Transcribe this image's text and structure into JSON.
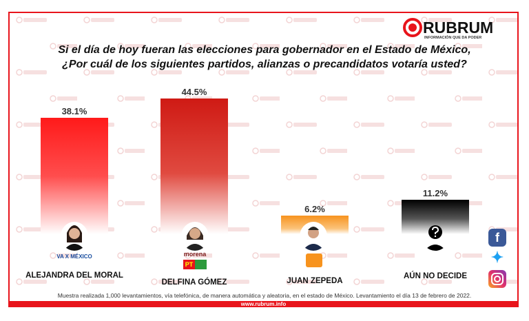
{
  "chart_data": {
    "type": "bar",
    "title": "Si el día de hoy fueran las elecciones para gobernador en el Estado de México, ¿Por cuál de los siguientes partidos, alianzas o precandidatos votaría usted?",
    "categories": [
      "ALEJANDRA DEL MORAL",
      "DELFINA GÓMEZ",
      "JUAN ZEPEDA",
      "AÚN NO DECIDE"
    ],
    "values": [
      38.1,
      44.5,
      6.2,
      11.2
    ],
    "labels": [
      "38.1%",
      "44.5%",
      "6.2%",
      "11.2%"
    ],
    "colors": [
      "#ff1a1a",
      "#d01a14",
      "#f7931e",
      "#000000"
    ],
    "ylim": [
      0,
      50
    ],
    "grid": false
  },
  "title_line1": "Si el día de hoy fueran las elecciones para gobernador en el Estado de México,",
  "title_line2": "¿Por cuál de los siguientes partidos, alianzas o precandidatos votaría usted?",
  "logo": {
    "name": "RUBRUM",
    "tagline": "INFORMACIÓN QUE DA PODER"
  },
  "watermark": "RUBRUM",
  "parties": {
    "delfina": "morena",
    "alejandra": "VA X MÉXICO"
  },
  "note": "Muestra realizada 1,000 levantamientos, vía telefónica, de manera automática y aleatoria, en el estado de México. Levantamiento el día 13 de febrero de 2022.",
  "url": "www.rubrum.info",
  "social": [
    "facebook-icon",
    "twitter-icon",
    "instagram-icon"
  ]
}
